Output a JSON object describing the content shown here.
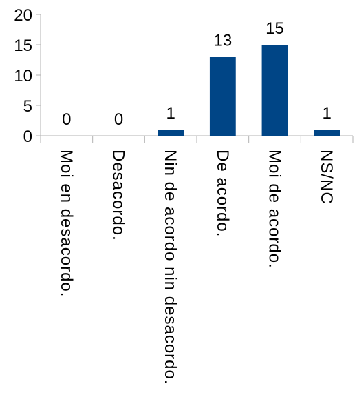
{
  "chart_data": {
    "type": "bar",
    "categories": [
      "Moi en desacordo.",
      "Desacordo.",
      "Nin de acordo nin desacordo.",
      "De acordo.",
      "Moi de acordo.",
      "NS/NC"
    ],
    "values": [
      0,
      0,
      1,
      13,
      15,
      1
    ],
    "ylim": [
      0,
      20
    ],
    "yticks": [
      0,
      5,
      10,
      15,
      20
    ],
    "grid": false,
    "data_labels": true,
    "colors": {
      "bar": "#004586",
      "axis": "#b3b3b3"
    }
  }
}
